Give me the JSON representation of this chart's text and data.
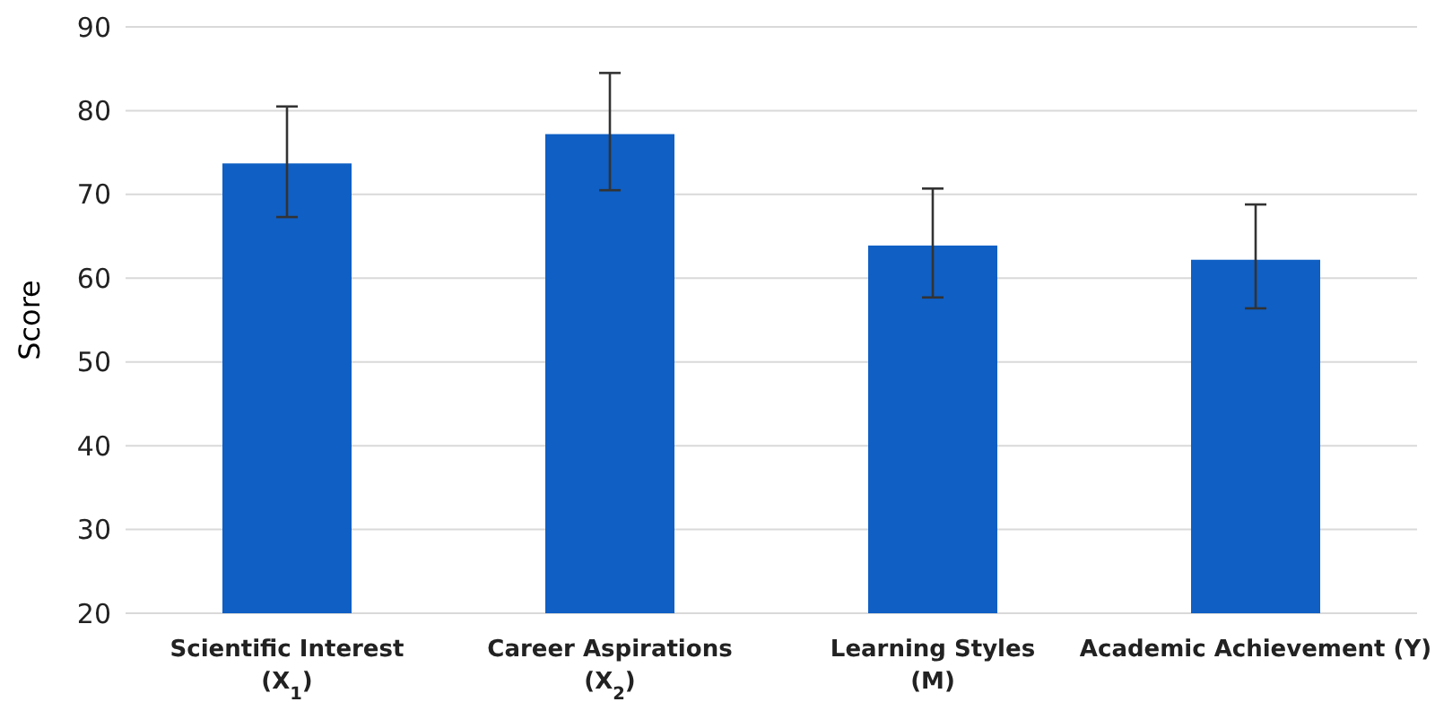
{
  "chart_data": {
    "type": "bar",
    "ylabel": "Score",
    "categories": [
      "Scientific Interest\n(X$_{1}$)",
      "Career Aspirations\n(X$_{2}$)",
      "Learning Styles\n(M)",
      "Academic Achievement (Y)"
    ],
    "values": [
      73.7,
      77.2,
      63.9,
      62.2
    ],
    "errors": [
      [
        67.3,
        80.5
      ],
      [
        70.5,
        84.5
      ],
      [
        57.7,
        70.7
      ],
      [
        56.4,
        68.8
      ]
    ],
    "color": "#0f5fc4",
    "ylim": [
      20,
      90
    ],
    "yticks": [
      20,
      30,
      40,
      50,
      60,
      70,
      80,
      90
    ],
    "grid": "y"
  }
}
